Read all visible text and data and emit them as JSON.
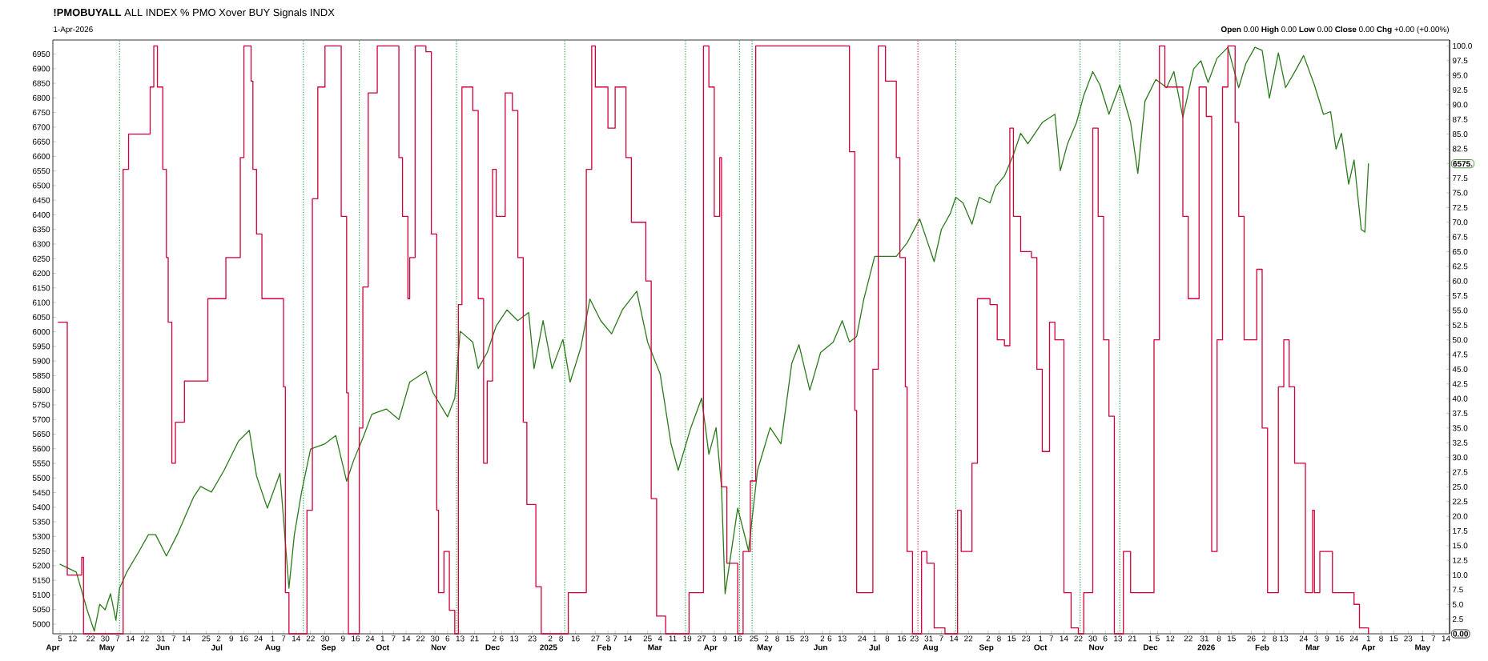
{
  "chart_data": {
    "type": "line",
    "title": "**!PMOBUYALL** ALL INDEX % PMO Xover BUY Signals INDX",
    "subtitle": "1-Apr-2026",
    "annotations": [
      "**Open** 0.00 **High** 0.00 **Low** 0.00 **Close** 0.00 **Chg** +0.00 (+0.00%)",
      "6575.",
      "0.00"
    ],
    "xlim": [
      "2024-04-01",
      "2026-05-16"
    ],
    "x2lim": [
      "2024-04-01",
      "2026-05-16"
    ],
    "ylim": [
      4967,
      6998
    ],
    "y2lim": [
      0,
      101
    ],
    "xticks": [
      {
        "value": "2024-04-05",
        "label": "5"
      },
      {
        "value": "2024-04-12",
        "label": "12"
      },
      {
        "value": "2024-04-22",
        "label": "22"
      },
      {
        "value": "2024-04-30",
        "label": "30"
      },
      {
        "value": "2024-05-07",
        "label": "7"
      },
      {
        "value": "2024-05-14",
        "label": "14"
      },
      {
        "value": "2024-05-22",
        "label": "22"
      },
      {
        "value": "2024-05-31",
        "label": "31"
      },
      {
        "value": "2024-06-07",
        "label": "7"
      },
      {
        "value": "2024-06-14",
        "label": "14"
      },
      {
        "value": "2024-06-25",
        "label": "25"
      },
      {
        "value": "2024-07-02",
        "label": "2"
      },
      {
        "value": "2024-07-09",
        "label": "9"
      },
      {
        "value": "2024-07-16",
        "label": "16"
      },
      {
        "value": "2024-07-24",
        "label": "24"
      },
      {
        "value": "2024-08-01",
        "label": "1"
      },
      {
        "value": "2024-08-07",
        "label": "7"
      },
      {
        "value": "2024-08-14",
        "label": "14"
      },
      {
        "value": "2024-08-22",
        "label": "22"
      },
      {
        "value": "2024-08-30",
        "label": "30"
      },
      {
        "value": "2024-09-09",
        "label": "9"
      },
      {
        "value": "2024-09-16",
        "label": "16"
      },
      {
        "value": "2024-09-24",
        "label": "24"
      },
      {
        "value": "2024-10-01",
        "label": "1"
      },
      {
        "value": "2024-10-07",
        "label": "7"
      },
      {
        "value": "2024-10-14",
        "label": "14"
      },
      {
        "value": "2024-10-22",
        "label": "22"
      },
      {
        "value": "2024-10-30",
        "label": "30"
      },
      {
        "value": "2024-11-06",
        "label": "6"
      },
      {
        "value": "2024-11-13",
        "label": "13"
      },
      {
        "value": "2024-11-21",
        "label": "21"
      },
      {
        "value": "2024-12-02",
        "label": "2"
      },
      {
        "value": "2024-12-06",
        "label": "6"
      },
      {
        "value": "2024-12-13",
        "label": "13"
      },
      {
        "value": "2024-12-23",
        "label": "23"
      },
      {
        "value": "2025-01-02",
        "label": "2"
      },
      {
        "value": "2025-01-08",
        "label": "8"
      },
      {
        "value": "2025-01-16",
        "label": "16"
      },
      {
        "value": "2025-01-27",
        "label": "27"
      },
      {
        "value": "2025-02-03",
        "label": "3"
      },
      {
        "value": "2025-02-07",
        "label": "7"
      },
      {
        "value": "2025-02-14",
        "label": "14"
      },
      {
        "value": "2025-02-25",
        "label": "25"
      },
      {
        "value": "2025-03-04",
        "label": "4"
      },
      {
        "value": "2025-03-11",
        "label": "11"
      },
      {
        "value": "2025-03-19",
        "label": "19"
      },
      {
        "value": "2025-03-27",
        "label": "27"
      },
      {
        "value": "2025-04-03",
        "label": "3"
      },
      {
        "value": "2025-04-09",
        "label": "9"
      },
      {
        "value": "2025-04-16",
        "label": "16"
      },
      {
        "value": "2025-04-25",
        "label": "25"
      },
      {
        "value": "2025-05-02",
        "label": "2"
      },
      {
        "value": "2025-05-08",
        "label": "8"
      },
      {
        "value": "2025-05-15",
        "label": "15"
      },
      {
        "value": "2025-05-23",
        "label": "23"
      },
      {
        "value": "2025-06-02",
        "label": "2"
      },
      {
        "value": "2025-06-06",
        "label": "6"
      },
      {
        "value": "2025-06-13",
        "label": "13"
      },
      {
        "value": "2025-06-24",
        "label": "24"
      },
      {
        "value": "2025-07-01",
        "label": "1"
      },
      {
        "value": "2025-07-08",
        "label": "8"
      },
      {
        "value": "2025-07-16",
        "label": "16"
      },
      {
        "value": "2025-07-23",
        "label": "23"
      },
      {
        "value": "2025-07-31",
        "label": "31"
      },
      {
        "value": "2025-08-07",
        "label": "7"
      },
      {
        "value": "2025-08-14",
        "label": "14"
      },
      {
        "value": "2025-08-22",
        "label": "22"
      },
      {
        "value": "2025-09-02",
        "label": "2"
      },
      {
        "value": "2025-09-08",
        "label": "8"
      },
      {
        "value": "2025-09-15",
        "label": "15"
      },
      {
        "value": "2025-09-23",
        "label": "23"
      },
      {
        "value": "2025-10-01",
        "label": "1"
      },
      {
        "value": "2025-10-07",
        "label": "7"
      },
      {
        "value": "2025-10-14",
        "label": "14"
      },
      {
        "value": "2025-10-22",
        "label": "22"
      },
      {
        "value": "2025-10-30",
        "label": "30"
      },
      {
        "value": "2025-11-06",
        "label": "6"
      },
      {
        "value": "2025-11-13",
        "label": "13"
      },
      {
        "value": "2025-11-21",
        "label": "21"
      },
      {
        "value": "2025-12-01",
        "label": "1"
      },
      {
        "value": "2025-12-05",
        "label": "5"
      },
      {
        "value": "2025-12-12",
        "label": "12"
      },
      {
        "value": "2025-12-22",
        "label": "22"
      },
      {
        "value": "2025-12-31",
        "label": "31"
      },
      {
        "value": "2026-01-08",
        "label": "8"
      },
      {
        "value": "2026-01-15",
        "label": "15"
      },
      {
        "value": "2026-01-26",
        "label": "26"
      },
      {
        "value": "2026-02-02",
        "label": "2"
      },
      {
        "value": "2026-02-08",
        "label": "8"
      },
      {
        "value": "2026-02-13",
        "label": "13"
      },
      {
        "value": "2026-02-24",
        "label": "24"
      },
      {
        "value": "2026-03-03",
        "label": "3"
      },
      {
        "value": "2026-03-09",
        "label": "9"
      },
      {
        "value": "2026-03-16",
        "label": "16"
      },
      {
        "value": "2026-03-24",
        "label": "24"
      },
      {
        "value": "2026-04-01",
        "label": "1"
      },
      {
        "value": "2026-04-08",
        "label": "8"
      },
      {
        "value": "2026-04-15",
        "label": "15"
      },
      {
        "value": "2026-04-23",
        "label": "23"
      },
      {
        "value": "2026-05-01",
        "label": "1"
      },
      {
        "value": "2026-05-07",
        "label": "7"
      },
      {
        "value": "2026-05-14",
        "label": "14"
      }
    ],
    "x2ticks": [
      {
        "value": "2024-04-01",
        "label": "Apr"
      },
      {
        "value": "2024-05-01",
        "label": "May"
      },
      {
        "value": "2024-06-01",
        "label": "Jun"
      },
      {
        "value": "2024-07-01",
        "label": "Jul"
      },
      {
        "value": "2024-08-01",
        "label": "Aug"
      },
      {
        "value": "2024-09-01",
        "label": "Sep"
      },
      {
        "value": "2024-10-01",
        "label": "Oct"
      },
      {
        "value": "2024-11-01",
        "label": "Nov"
      },
      {
        "value": "2024-12-01",
        "label": "Dec"
      },
      {
        "value": "2025-01-01",
        "label": "2025"
      },
      {
        "value": "2025-02-01",
        "label": "Feb"
      },
      {
        "value": "2025-03-01",
        "label": "Mar"
      },
      {
        "value": "2025-04-01",
        "label": "Apr"
      },
      {
        "value": "2025-05-01",
        "label": "May"
      },
      {
        "value": "2025-06-01",
        "label": "Jun"
      },
      {
        "value": "2025-07-01",
        "label": "Jul"
      },
      {
        "value": "2025-08-01",
        "label": "Aug"
      },
      {
        "value": "2025-09-01",
        "label": "Sep"
      },
      {
        "value": "2025-10-01",
        "label": "Oct"
      },
      {
        "value": "2025-11-01",
        "label": "Nov"
      },
      {
        "value": "2025-12-01",
        "label": "Dec"
      },
      {
        "value": "2026-01-01",
        "label": "2026"
      },
      {
        "value": "2026-02-01",
        "label": "Feb"
      },
      {
        "value": "2026-03-01",
        "label": "Mar"
      },
      {
        "value": "2026-04-01",
        "label": "Apr"
      },
      {
        "value": "2026-05-01",
        "label": "May"
      }
    ],
    "yticks": [
      5000,
      5050,
      5100,
      5150,
      5200,
      5250,
      5300,
      5350,
      5400,
      5450,
      5500,
      5550,
      5600,
      5650,
      5700,
      5750,
      5800,
      5850,
      5900,
      5950,
      6000,
      6050,
      6100,
      6150,
      6200,
      6250,
      6300,
      6350,
      6400,
      6450,
      6500,
      6550,
      6600,
      6650,
      6700,
      6750,
      6800,
      6850,
      6900,
      6950
    ],
    "y2ticks": [
      {
        "value": 2.5,
        "label": "2.5"
      },
      {
        "value": 5,
        "label": "5.0"
      },
      {
        "value": 7.5,
        "label": "7.5"
      },
      {
        "value": 10,
        "label": "10.0"
      },
      {
        "value": 12.5,
        "label": "12.5"
      },
      {
        "value": 15,
        "label": "15.0"
      },
      {
        "value": 17.5,
        "label": "17.5"
      },
      {
        "value": 20,
        "label": "20.0"
      },
      {
        "value": 22.5,
        "label": "22.5"
      },
      {
        "value": 25,
        "label": "25.0"
      },
      {
        "value": 27.5,
        "label": "27.5"
      },
      {
        "value": 30,
        "label": "30.0"
      },
      {
        "value": 32.5,
        "label": "32.5"
      },
      {
        "value": 35,
        "label": "35.0"
      },
      {
        "value": 37.5,
        "label": "37.5"
      },
      {
        "value": 40,
        "label": "40.0"
      },
      {
        "value": 42.5,
        "label": "42.5"
      },
      {
        "value": 45,
        "label": "45.0"
      },
      {
        "value": 47.5,
        "label": "47.5"
      },
      {
        "value": 50,
        "label": "50.0"
      },
      {
        "value": 52.5,
        "label": "52.5"
      },
      {
        "value": 55,
        "label": "55.0"
      },
      {
        "value": 57.5,
        "label": "57.5"
      },
      {
        "value": 60,
        "label": "60.0"
      },
      {
        "value": 62.5,
        "label": "62.5"
      },
      {
        "value": 65,
        "label": "65.0"
      },
      {
        "value": 67.5,
        "label": "67.5"
      },
      {
        "value": 70,
        "label": "70.0"
      },
      {
        "value": 72.5,
        "label": "72.5"
      },
      {
        "value": 75,
        "label": "75.0"
      },
      {
        "value": 77.5,
        "label": "77.5"
      },
      {
        "value": 80,
        "label": null
      },
      {
        "value": 82.5,
        "label": "82.5"
      },
      {
        "value": 85,
        "label": "85.0"
      },
      {
        "value": 87.5,
        "label": "87.5"
      },
      {
        "value": 90,
        "label": "90.0"
      },
      {
        "value": 92.5,
        "label": "92.5"
      },
      {
        "value": 95,
        "label": "95.0"
      },
      {
        "value": 97.5,
        "label": "97.5"
      },
      {
        "value": 100,
        "label": "100.0"
      }
    ],
    "ref_lines": [
      {
        "axis": "x",
        "value": "2024-05-08",
        "color": "#22a33a",
        "line_style": "dotted"
      },
      {
        "axis": "x",
        "value": "2024-08-18",
        "color": "#22a33a",
        "line_style": "dotted"
      },
      {
        "axis": "x",
        "value": "2024-09-18",
        "color": "#22a33a",
        "line_style": "dotted"
      },
      {
        "axis": "x",
        "value": "2024-11-11",
        "color": "#22a33a",
        "line_style": "dotted"
      },
      {
        "axis": "x",
        "value": "2025-01-10",
        "color": "#22a33a",
        "line_style": "dotted"
      },
      {
        "axis": "x",
        "value": "2025-03-18",
        "color": "#22a33a",
        "line_style": "dotted"
      },
      {
        "axis": "x",
        "value": "2025-04-17",
        "color": "#22a33a",
        "line_style": "dotted"
      },
      {
        "axis": "x",
        "value": "2025-04-24",
        "color": "#22a33a",
        "line_style": "dotted"
      },
      {
        "axis": "x",
        "value": "2025-07-25",
        "color": "#e0203a",
        "line_style": "dotted"
      },
      {
        "axis": "x",
        "value": "2025-08-15",
        "color": "#22a33a",
        "line_style": "dotted"
      },
      {
        "axis": "x",
        "value": "2025-10-23",
        "color": "#22a33a",
        "line_style": "dotted"
      },
      {
        "axis": "x",
        "value": "2025-11-14",
        "color": "#22a33a",
        "line_style": "dotted"
      }
    ],
    "series": [
      {
        "type": "step",
        "axis": "y2",
        "color": "#d0003a",
        "x": [
          "2024-04-04",
          "2024-04-09",
          "2024-04-17",
          "2024-04-18",
          "2024-05-08",
          "2024-05-10",
          "2024-05-13",
          "2024-05-25",
          "2024-05-27",
          "2024-05-29",
          "2024-06-01",
          "2024-06-03",
          "2024-06-04",
          "2024-06-06",
          "2024-06-08",
          "2024-06-13",
          "2024-06-26",
          "2024-07-06",
          "2024-07-14",
          "2024-07-16",
          "2024-07-20",
          "2024-07-21",
          "2024-07-23",
          "2024-07-26",
          "2024-08-05",
          "2024-08-07",
          "2024-08-08",
          "2024-08-10",
          "2024-08-17",
          "2024-08-20",
          "2024-08-23",
          "2024-08-26",
          "2024-08-30",
          "2024-09-06",
          "2024-09-08",
          "2024-09-11",
          "2024-09-12",
          "2024-09-17",
          "2024-09-18",
          "2024-09-20",
          "2024-09-23",
          "2024-09-28",
          "2024-10-07",
          "2024-10-10",
          "2024-10-12",
          "2024-10-15",
          "2024-10-16",
          "2024-10-19",
          "2024-10-25",
          "2024-10-28",
          "2024-10-31",
          "2024-11-01",
          "2024-11-04",
          "2024-11-07",
          "2024-11-10",
          "2024-11-12",
          "2024-11-14",
          "2024-11-20",
          "2024-11-23",
          "2024-11-26",
          "2024-11-28",
          "2024-12-01",
          "2024-12-03",
          "2024-12-08",
          "2024-12-12",
          "2024-12-15",
          "2024-12-18",
          "2024-12-20",
          "2024-12-25",
          "2024-12-28",
          "2025-01-11",
          "2025-01-12",
          "2025-01-19",
          "2025-01-22",
          "2025-01-25",
          "2025-01-27",
          "2025-02-03",
          "2025-02-07",
          "2025-02-13",
          "2025-02-16",
          "2025-02-22",
          "2025-02-24",
          "2025-02-27",
          "2025-03-02",
          "2025-03-07",
          "2025-03-18",
          "2025-03-20",
          "2025-03-26",
          "2025-03-28",
          "2025-03-31",
          "2025-04-03",
          "2025-04-06",
          "2025-04-07",
          "2025-04-10",
          "2025-04-16",
          "2025-04-19",
          "2025-04-23",
          "2025-04-26",
          "2025-05-10",
          "2025-06-08",
          "2025-06-15",
          "2025-06-17",
          "2025-06-20",
          "2025-06-21",
          "2025-06-27",
          "2025-06-30",
          "2025-07-03",
          "2025-07-07",
          "2025-07-13",
          "2025-07-15",
          "2025-07-18",
          "2025-07-19",
          "2025-07-22",
          "2025-07-27",
          "2025-07-30",
          "2025-08-03",
          "2025-08-09",
          "2025-08-15",
          "2025-08-16",
          "2025-08-18",
          "2025-08-24",
          "2025-08-27",
          "2025-09-03",
          "2025-09-07",
          "2025-09-11",
          "2025-09-14",
          "2025-09-16",
          "2025-09-20",
          "2025-09-26",
          "2025-09-29",
          "2025-10-02",
          "2025-10-06",
          "2025-10-09",
          "2025-10-14",
          "2025-10-18",
          "2025-10-22",
          "2025-10-25",
          "2025-10-30",
          "2025-11-02",
          "2025-11-05",
          "2025-11-08",
          "2025-11-11",
          "2025-11-14",
          "2025-11-16",
          "2025-11-20",
          "2025-11-30",
          "2025-12-03",
          "2025-12-06",
          "2025-12-09",
          "2025-12-16",
          "2025-12-19",
          "2025-12-22",
          "2025-12-25",
          "2025-12-28",
          "2026-01-01",
          "2026-01-04",
          "2026-01-07",
          "2026-01-10",
          "2026-01-13",
          "2026-01-17",
          "2026-01-19",
          "2026-01-22",
          "2026-01-26",
          "2026-01-29",
          "2026-02-01",
          "2026-02-04",
          "2026-02-07",
          "2026-02-10",
          "2026-02-13",
          "2026-02-16",
          "2026-02-19",
          "2026-02-22",
          "2026-02-25",
          "2026-03-01",
          "2026-03-02",
          "2026-03-05",
          "2026-03-09",
          "2026-03-12",
          "2026-03-21",
          "2026-03-24",
          "2026-03-27",
          "2026-04-01"
        ],
        "values": [
          53,
          10,
          13,
          0,
          0,
          79,
          85,
          93,
          100,
          93,
          79,
          64,
          53,
          29,
          36,
          43,
          57,
          64,
          81,
          100,
          94,
          79,
          68,
          57,
          57,
          42,
          7,
          0,
          0,
          21,
          74,
          93,
          100,
          100,
          71,
          41,
          0,
          0,
          35,
          59,
          92,
          100,
          100,
          81,
          71,
          57,
          64,
          100,
          99,
          68,
          21,
          7,
          14,
          4,
          0,
          56,
          93,
          89,
          57,
          29,
          43,
          79,
          71,
          92,
          89,
          64,
          36,
          22,
          8,
          0,
          0,
          7,
          7,
          79,
          100,
          93,
          86,
          93,
          81,
          70,
          70,
          60,
          23,
          3,
          0,
          0,
          7,
          7,
          100,
          93,
          71,
          81,
          25,
          12,
          0,
          14,
          26,
          100,
          100,
          100,
          100,
          82,
          38,
          7,
          7,
          45,
          100,
          94,
          81,
          64,
          42,
          14,
          0,
          14,
          12,
          1,
          0,
          0,
          21,
          14,
          29,
          57,
          56,
          50,
          49,
          86,
          71,
          65,
          64,
          45,
          31,
          53,
          50,
          7,
          1,
          0,
          7,
          86,
          71,
          50,
          37,
          0,
          0,
          14,
          7,
          7,
          50,
          100,
          93,
          93,
          71,
          57,
          57,
          93,
          88,
          14,
          50,
          93,
          100,
          87,
          71,
          50,
          50,
          62,
          35,
          7,
          7,
          42,
          50,
          42,
          29,
          29,
          7,
          21,
          7,
          14,
          14,
          7,
          7,
          5,
          1,
          0
        ]
      },
      {
        "color": "#2a7a1a",
        "x": [
          "2024-04-05",
          "2024-04-14",
          "2024-04-20",
          "2024-04-24",
          "2024-04-27",
          "2024-04-30",
          "2024-05-03",
          "2024-05-06",
          "2024-05-08",
          "2024-05-12",
          "2024-05-19",
          "2024-05-24",
          "2024-05-28",
          "2024-06-03",
          "2024-06-09",
          "2024-06-18",
          "2024-06-22",
          "2024-06-28",
          "2024-07-05",
          "2024-07-13",
          "2024-07-19",
          "2024-07-23",
          "2024-07-29",
          "2024-08-05",
          "2024-08-10",
          "2024-08-13",
          "2024-08-17",
          "2024-08-22",
          "2024-08-30",
          "2024-09-05",
          "2024-09-11",
          "2024-09-15",
          "2024-09-20",
          "2024-09-25",
          "2024-10-03",
          "2024-10-10",
          "2024-10-16",
          "2024-10-25",
          "2024-10-29",
          "2024-11-06",
          "2024-11-10",
          "2024-11-13",
          "2024-11-20",
          "2024-11-23",
          "2024-11-28",
          "2024-12-03",
          "2024-12-09",
          "2024-12-15",
          "2024-12-21",
          "2024-12-24",
          "2024-12-29",
          "2025-01-03",
          "2025-01-09",
          "2025-01-13",
          "2025-01-19",
          "2025-01-24",
          "2025-01-30",
          "2025-02-05",
          "2025-02-11",
          "2025-02-19",
          "2025-02-25",
          "2025-03-04",
          "2025-03-10",
          "2025-03-14",
          "2025-03-21",
          "2025-03-27",
          "2025-03-31",
          "2025-04-04",
          "2025-04-07",
          "2025-04-09",
          "2025-04-16",
          "2025-04-22",
          "2025-04-27",
          "2025-05-04",
          "2025-05-10",
          "2025-05-16",
          "2025-05-20",
          "2025-05-26",
          "2025-06-01",
          "2025-06-08",
          "2025-06-13",
          "2025-06-17",
          "2025-06-21",
          "2025-06-25",
          "2025-07-01",
          "2025-07-07",
          "2025-07-13",
          "2025-07-19",
          "2025-07-26",
          "2025-08-03",
          "2025-08-07",
          "2025-08-12",
          "2025-08-15",
          "2025-08-19",
          "2025-08-24",
          "2025-08-28",
          "2025-09-03",
          "2025-09-06",
          "2025-09-11",
          "2025-09-16",
          "2025-09-20",
          "2025-09-24",
          "2025-10-02",
          "2025-10-09",
          "2025-10-12",
          "2025-10-16",
          "2025-10-21",
          "2025-10-25",
          "2025-10-30",
          "2025-11-03",
          "2025-11-08",
          "2025-11-14",
          "2025-11-20",
          "2025-11-24",
          "2025-11-28",
          "2025-12-04",
          "2025-12-10",
          "2025-12-14",
          "2025-12-19",
          "2025-12-25",
          "2025-12-29",
          "2026-01-02",
          "2026-01-07",
          "2026-01-13",
          "2026-01-19",
          "2026-01-23",
          "2026-01-28",
          "2026-02-01",
          "2026-02-05",
          "2026-02-10",
          "2026-02-14",
          "2026-02-20",
          "2026-02-24",
          "2026-03-02",
          "2026-03-07",
          "2026-03-11",
          "2026-03-14",
          "2026-03-17",
          "2026-03-21",
          "2026-03-24",
          "2026-03-28",
          "2026-03-30",
          "2026-04-01"
        ],
        "values": [
          5205,
          5178,
          5049,
          4976,
          5068,
          5049,
          5104,
          5013,
          5123,
          5178,
          5251,
          5306,
          5306,
          5233,
          5306,
          5434,
          5471,
          5452,
          5526,
          5626,
          5663,
          5507,
          5397,
          5516,
          5123,
          5306,
          5452,
          5599,
          5617,
          5645,
          5489,
          5562,
          5636,
          5718,
          5736,
          5700,
          5828,
          5865,
          5791,
          5709,
          5773,
          6002,
          5965,
          5874,
          5929,
          6020,
          6075,
          6038,
          6066,
          5874,
          6038,
          5874,
          5974,
          5828,
          5947,
          6112,
          6038,
          5993,
          6075,
          6139,
          5965,
          5855,
          5617,
          5526,
          5672,
          5773,
          5581,
          5672,
          5471,
          5104,
          5397,
          5251,
          5526,
          5672,
          5617,
          5892,
          5956,
          5800,
          5929,
          5965,
          6038,
          5965,
          5984,
          6112,
          6258,
          6258,
          6258,
          6304,
          6386,
          6240,
          6350,
          6405,
          6460,
          6441,
          6368,
          6460,
          6441,
          6496,
          6533,
          6606,
          6679,
          6643,
          6716,
          6744,
          6551,
          6643,
          6716,
          6808,
          6890,
          6844,
          6744,
          6844,
          6716,
          6542,
          6789,
          6863,
          6835,
          6890,
          6734,
          6899,
          6927,
          6853,
          6936,
          6973,
          6835,
          6918,
          6973,
          6963,
          6799,
          6954,
          6835,
          6899,
          6945,
          6844,
          6744,
          6753,
          6625,
          6679,
          6505,
          6588,
          6350,
          6341,
          6575
        ]
      }
    ]
  }
}
